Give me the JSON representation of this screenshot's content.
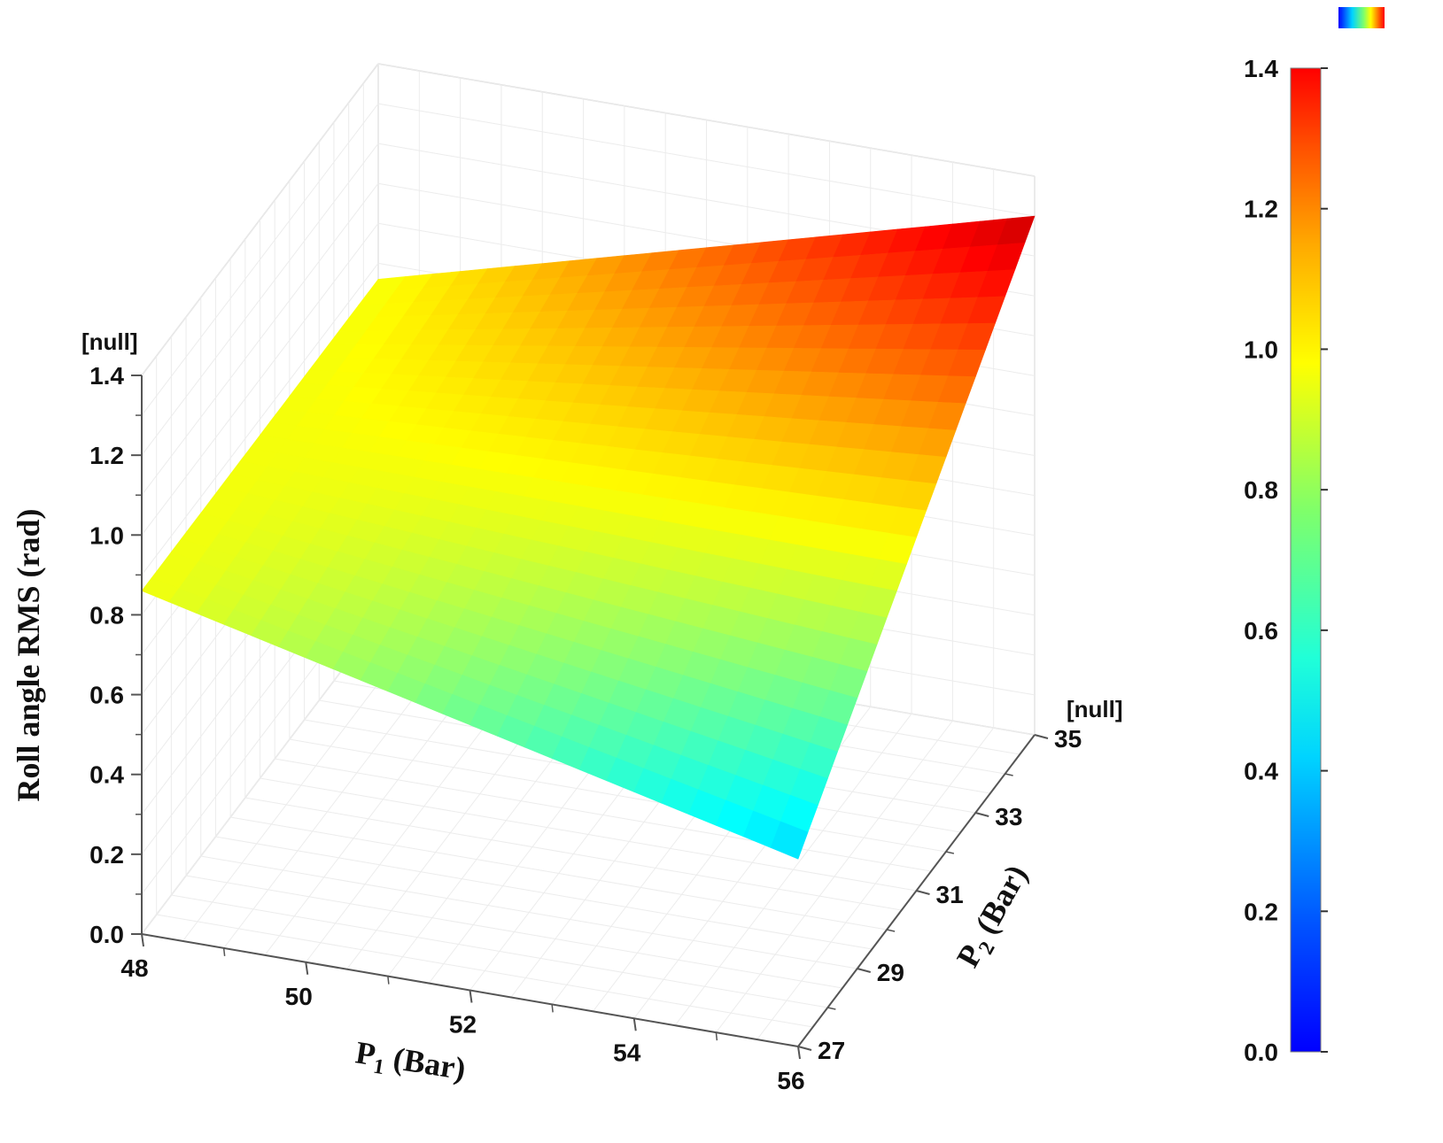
{
  "chart_data": {
    "type": "surface3d",
    "xlabel_main": "P",
    "xlabel_sub": "1",
    "xlabel_unit": " (Bar)",
    "ylabel_main": "P",
    "ylabel_sub": "2",
    "ylabel_unit": " (Bar)",
    "zlabel": "Roll angle RMS (rad)",
    "corner_label_z": "[null]",
    "corner_label_y": "[null]",
    "x_ticks": [
      "48",
      "50",
      "52",
      "54",
      "56"
    ],
    "y_ticks": [
      "27",
      "29",
      "31",
      "33",
      "35"
    ],
    "z_ticks": [
      "0.0",
      "0.2",
      "0.4",
      "0.6",
      "0.8",
      "1.0",
      "1.2",
      "1.4"
    ],
    "colorbar_ticks": [
      "0.0",
      "0.2",
      "0.4",
      "0.6",
      "0.8",
      "1.0",
      "1.2",
      "1.4"
    ],
    "xlim": [
      48,
      56
    ],
    "ylim": [
      27,
      35
    ],
    "zlim": [
      0,
      1.4
    ],
    "colormap": "jet",
    "surface_corners": [
      {
        "x": 48,
        "y": 35,
        "z": 0.86
      },
      {
        "x": 56,
        "y": 35,
        "z": 1.3
      },
      {
        "x": 56,
        "y": 27,
        "z": 0.47
      },
      {
        "x": 48,
        "y": 27,
        "z": 0.86
      }
    ]
  }
}
